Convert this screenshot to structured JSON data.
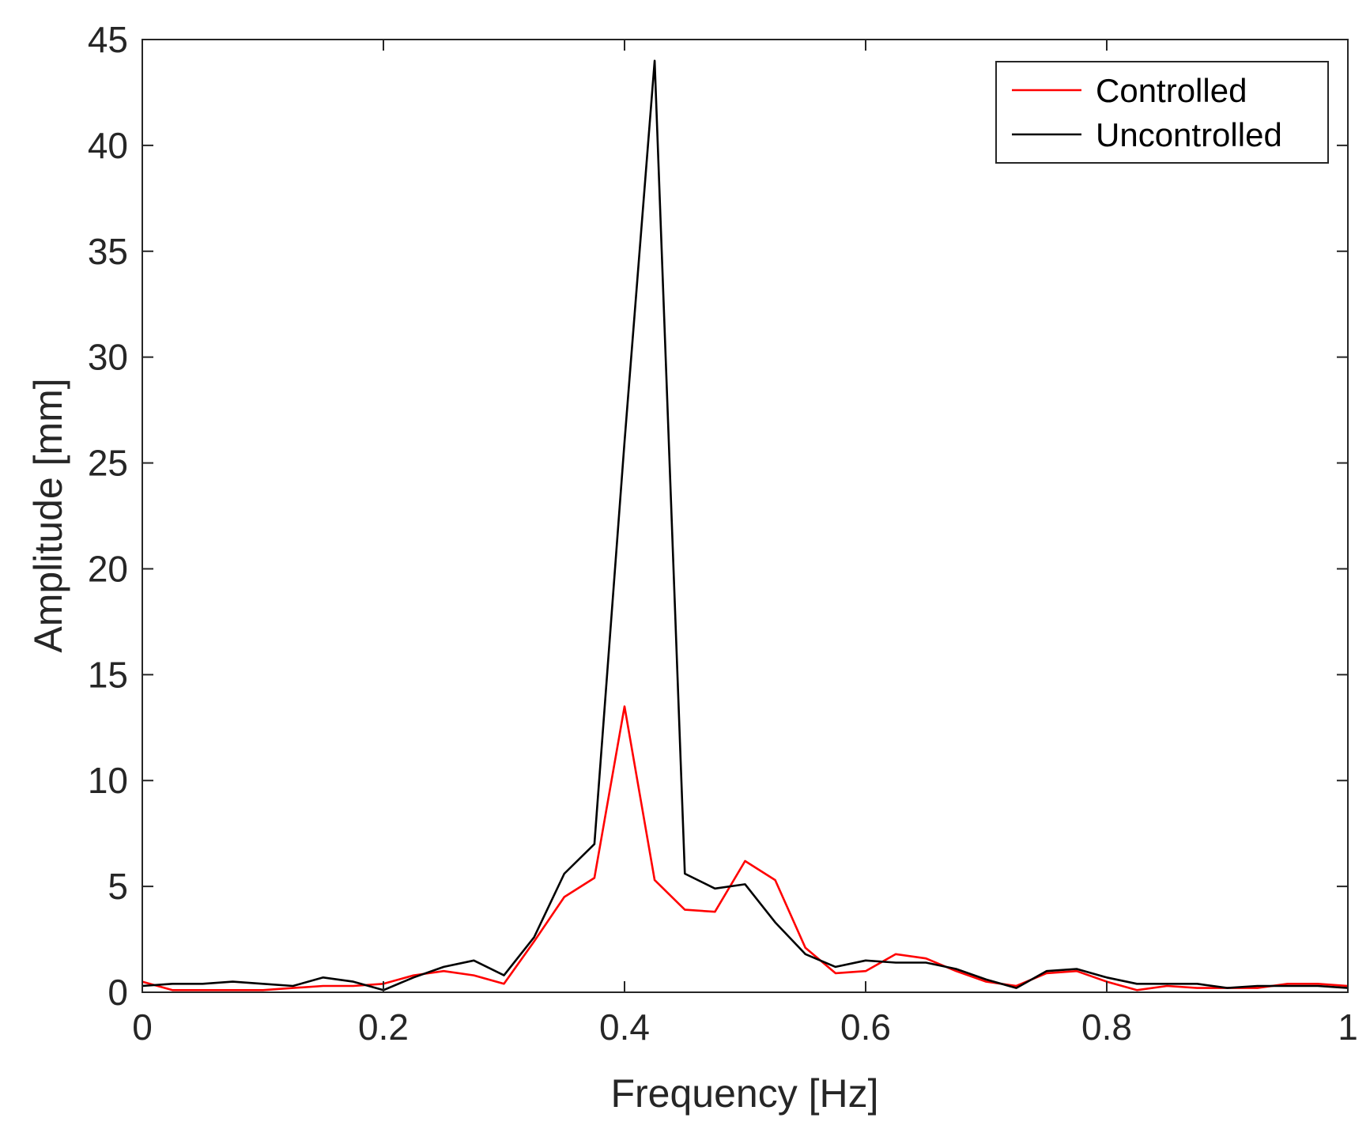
{
  "chart_data": {
    "type": "line",
    "title": "",
    "xlabel": "Frequency [Hz]",
    "ylabel": "Amplitude [mm]",
    "xlim": [
      0,
      1
    ],
    "ylim": [
      0,
      45
    ],
    "xticks": [
      0,
      0.2,
      0.4,
      0.6,
      0.8,
      1
    ],
    "xtick_labels": [
      "0",
      "0.2",
      "0.4",
      "0.6",
      "0.8",
      "1"
    ],
    "yticks": [
      0,
      5,
      10,
      15,
      20,
      25,
      30,
      35,
      40,
      45
    ],
    "ytick_labels": [
      "0",
      "5",
      "10",
      "15",
      "20",
      "25",
      "30",
      "35",
      "40",
      "45"
    ],
    "grid": false,
    "legend_position": "top-right",
    "x": [
      0,
      0.025,
      0.05,
      0.075,
      0.1,
      0.125,
      0.15,
      0.175,
      0.2,
      0.225,
      0.25,
      0.275,
      0.3,
      0.325,
      0.35,
      0.375,
      0.4,
      0.425,
      0.45,
      0.475,
      0.5,
      0.525,
      0.55,
      0.575,
      0.6,
      0.625,
      0.65,
      0.675,
      0.7,
      0.725,
      0.75,
      0.775,
      0.8,
      0.825,
      0.85,
      0.875,
      0.9,
      0.925,
      0.95,
      0.975,
      1
    ],
    "series": [
      {
        "name": "Controlled",
        "color": "#ff0000",
        "values": [
          0.5,
          0.1,
          0.1,
          0.1,
          0.1,
          0.2,
          0.3,
          0.3,
          0.4,
          0.8,
          1.0,
          0.8,
          0.4,
          2.4,
          4.5,
          5.4,
          13.5,
          5.3,
          3.9,
          3.8,
          6.2,
          5.3,
          2.1,
          0.9,
          1.0,
          1.8,
          1.6,
          1.0,
          0.5,
          0.3,
          0.9,
          1.0,
          0.5,
          0.1,
          0.3,
          0.2,
          0.2,
          0.2,
          0.4,
          0.4,
          0.3
        ]
      },
      {
        "name": "Uncontrolled",
        "color": "#000000",
        "values": [
          0.3,
          0.4,
          0.4,
          0.5,
          0.4,
          0.3,
          0.7,
          0.5,
          0.1,
          0.7,
          1.2,
          1.5,
          0.8,
          2.6,
          5.6,
          7.0,
          26.0,
          44.0,
          5.6,
          4.9,
          5.1,
          3.3,
          1.8,
          1.2,
          1.5,
          1.4,
          1.4,
          1.1,
          0.6,
          0.2,
          1.0,
          1.1,
          0.7,
          0.4,
          0.4,
          0.4,
          0.2,
          0.3,
          0.3,
          0.3,
          0.2
        ]
      }
    ]
  }
}
